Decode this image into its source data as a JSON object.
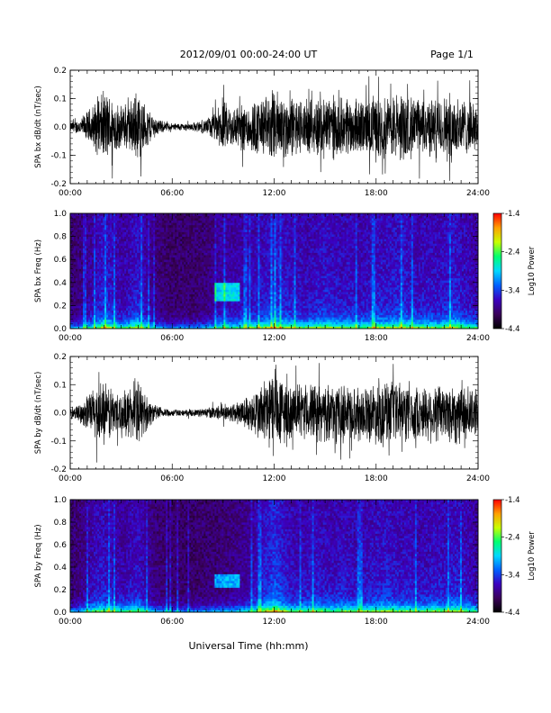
{
  "header": {
    "date_range": "2012/09/01  00:00-24:00 UT",
    "page": "Page 1/1"
  },
  "footer": {
    "xlabel": "Universal Time (hh:mm)"
  },
  "chart_data": [
    {
      "type": "line",
      "ylabel": "SPA bx dB/dt (nT/sec)",
      "xlim": [
        "00:00",
        "24:00"
      ],
      "ylim": [
        -0.2,
        0.2
      ],
      "x_ticks": [
        "00:00",
        "06:00",
        "12:00",
        "18:00",
        "24:00"
      ],
      "y_ticks": [
        "-0.2",
        "-0.1",
        "0.0",
        "0.1",
        "0.2"
      ],
      "grid": false,
      "series_color": "#000000",
      "activity_profile": {
        "hours": [
          0,
          0.5,
          1,
          1.5,
          2,
          2.5,
          3,
          3.5,
          4,
          4.5,
          5,
          5.5,
          6,
          6.5,
          7,
          7.5,
          8,
          8.5,
          9,
          9.5,
          10,
          10.5,
          11,
          11.5,
          12,
          12.5,
          13,
          13.5,
          14,
          14.5,
          15,
          15.5,
          16,
          16.5,
          17,
          17.5,
          18,
          18.5,
          19,
          19.5,
          20,
          20.5,
          21,
          21.5,
          22,
          22.5,
          23,
          23.5,
          24
        ],
        "amplitude": [
          0.02,
          0.03,
          0.06,
          0.1,
          0.14,
          0.12,
          0.08,
          0.1,
          0.14,
          0.08,
          0.04,
          0.02,
          0.015,
          0.015,
          0.015,
          0.02,
          0.03,
          0.06,
          0.1,
          0.08,
          0.09,
          0.1,
          0.11,
          0.12,
          0.15,
          0.13,
          0.12,
          0.11,
          0.1,
          0.12,
          0.13,
          0.12,
          0.11,
          0.12,
          0.1,
          0.11,
          0.13,
          0.12,
          0.13,
          0.14,
          0.12,
          0.11,
          0.12,
          0.11,
          0.12,
          0.14,
          0.12,
          0.1,
          0.08
        ]
      }
    },
    {
      "type": "heatmap",
      "ylabel": "SPA bx Freq (Hz)",
      "xlim": [
        "00:00",
        "24:00"
      ],
      "ylim": [
        0.0,
        1.0
      ],
      "x_ticks": [
        "00:00",
        "06:00",
        "12:00",
        "18:00",
        "24:00"
      ],
      "y_ticks": [
        "0.0",
        "0.2",
        "0.4",
        "0.6",
        "0.8",
        "1.0"
      ],
      "colorbar_label": "Log10 Power",
      "colorbar_range": [
        -4.4,
        -1.4
      ],
      "colorbar_ticks": [
        "-1.4",
        "-2.4",
        "-3.4",
        "-4.4"
      ],
      "colormap": [
        "#000000",
        "#3a005a",
        "#3c00c0",
        "#0060ff",
        "#00d8ff",
        "#00ff70",
        "#c8ff00",
        "#ffa000",
        "#ff0000"
      ],
      "feature_band": {
        "start": "08:30",
        "end": "10:00",
        "freq": [
          0.25,
          0.4
        ]
      }
    },
    {
      "type": "line",
      "ylabel": "SPA by dB/dt (nT/sec)",
      "xlim": [
        "00:00",
        "24:00"
      ],
      "ylim": [
        -0.2,
        0.2
      ],
      "x_ticks": [
        "00:00",
        "06:00",
        "12:00",
        "18:00",
        "24:00"
      ],
      "y_ticks": [
        "-0.2",
        "-0.1",
        "0.0",
        "0.1",
        "0.2"
      ],
      "grid": false,
      "series_color": "#000000",
      "activity_profile": {
        "hours": [
          0,
          0.5,
          1,
          1.5,
          2,
          2.5,
          3,
          3.5,
          4,
          4.5,
          5,
          5.5,
          6,
          6.5,
          7,
          7.5,
          8,
          8.5,
          9,
          9.5,
          10,
          10.5,
          11,
          11.5,
          12,
          12.5,
          13,
          13.5,
          14,
          14.5,
          15,
          15.5,
          16,
          16.5,
          17,
          17.5,
          18,
          18.5,
          19,
          19.5,
          20,
          20.5,
          21,
          21.5,
          22,
          22.5,
          23,
          23.5,
          24
        ],
        "amplitude": [
          0.02,
          0.03,
          0.07,
          0.11,
          0.12,
          0.1,
          0.08,
          0.1,
          0.12,
          0.07,
          0.03,
          0.02,
          0.015,
          0.012,
          0.012,
          0.015,
          0.02,
          0.025,
          0.03,
          0.04,
          0.05,
          0.07,
          0.1,
          0.14,
          0.18,
          0.14,
          0.11,
          0.1,
          0.11,
          0.12,
          0.11,
          0.1,
          0.12,
          0.11,
          0.1,
          0.11,
          0.12,
          0.13,
          0.12,
          0.11,
          0.12,
          0.1,
          0.11,
          0.12,
          0.11,
          0.13,
          0.12,
          0.1,
          0.08
        ]
      }
    },
    {
      "type": "heatmap",
      "ylabel": "SPA by Freq (Hz)",
      "xlim": [
        "00:00",
        "24:00"
      ],
      "ylim": [
        0.0,
        1.0
      ],
      "x_ticks": [
        "00:00",
        "06:00",
        "12:00",
        "18:00",
        "24:00"
      ],
      "y_ticks": [
        "0.0",
        "0.2",
        "0.4",
        "0.6",
        "0.8",
        "1.0"
      ],
      "colorbar_label": "Log10 Power",
      "colorbar_range": [
        -4.4,
        -1.4
      ],
      "colorbar_ticks": [
        "-1.4",
        "-2.4",
        "-3.4",
        "-4.4"
      ],
      "colormap": [
        "#000000",
        "#3a005a",
        "#3c00c0",
        "#0060ff",
        "#00d8ff",
        "#00ff70",
        "#c8ff00",
        "#ffa000",
        "#ff0000"
      ],
      "feature_band": {
        "start": "08:30",
        "end": "10:00",
        "freq": [
          0.22,
          0.34
        ]
      }
    }
  ]
}
